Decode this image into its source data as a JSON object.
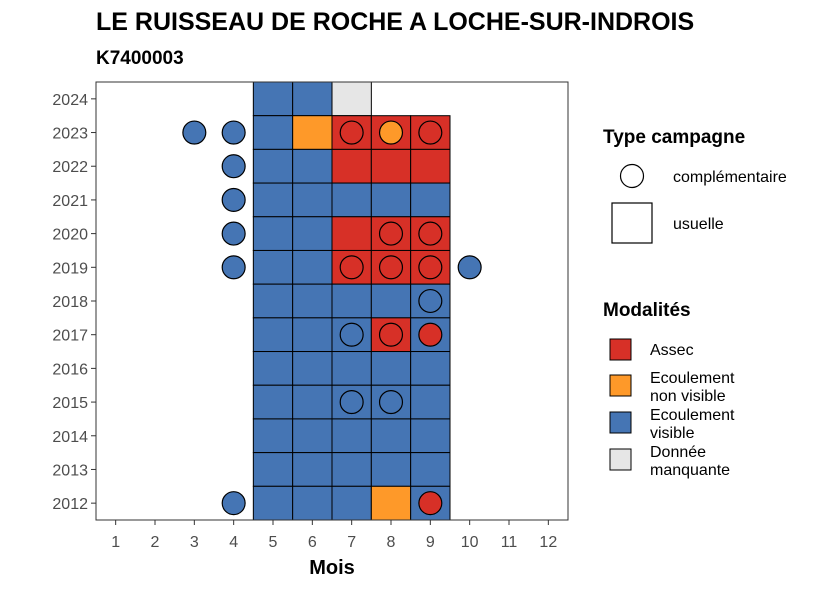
{
  "chart_data": {
    "type": "heatmap",
    "title": "LE RUISSEAU DE ROCHE A LOCHE-SUR-INDROIS",
    "subtitle": "K7400003",
    "xlabel": "Mois",
    "ylabel": "",
    "x_ticks": [
      1,
      2,
      3,
      4,
      5,
      6,
      7,
      8,
      9,
      10,
      11,
      12
    ],
    "y_ticks": [
      2012,
      2013,
      2014,
      2015,
      2016,
      2017,
      2018,
      2019,
      2020,
      2021,
      2022,
      2023,
      2024
    ],
    "xlim": [
      0.5,
      12.5
    ],
    "ylim": [
      2011.5,
      2024.5
    ],
    "grid": false,
    "colors": {
      "Assec": "#d73027",
      "Ecoulement non visible": "#fe9929",
      "Ecoulement visible": "#4575b4",
      "Donnée manquante": "#e6e6e6"
    },
    "legend": {
      "type_title": "Type campagne",
      "type_items": [
        {
          "shape": "circle",
          "label": "complémentaire"
        },
        {
          "shape": "square",
          "label": "usuelle"
        }
      ],
      "mod_title": "Modalités",
      "mod_items": [
        {
          "key": "Assec",
          "lines": [
            "Assec"
          ]
        },
        {
          "key": "Ecoulement non visible",
          "lines": [
            "Ecoulement",
            "non visible"
          ]
        },
        {
          "key": "Ecoulement visible",
          "lines": [
            "Ecoulement",
            "visible"
          ]
        },
        {
          "key": "Donnée manquante",
          "lines": [
            "Donnée",
            "manquante"
          ]
        }
      ],
      "position": "right"
    },
    "usuelle": [
      {
        "year": 2024,
        "months": [
          "Ecoulement visible",
          "Ecoulement visible",
          "Donnée manquante"
        ],
        "start": 5
      },
      {
        "year": 2023,
        "months": [
          "Ecoulement visible",
          "Ecoulement non visible",
          "Assec",
          "Assec",
          "Assec"
        ],
        "start": 5
      },
      {
        "year": 2022,
        "months": [
          "Ecoulement visible",
          "Ecoulement visible",
          "Assec",
          "Assec",
          "Assec"
        ],
        "start": 5
      },
      {
        "year": 2021,
        "months": [
          "Ecoulement visible",
          "Ecoulement visible",
          "Ecoulement visible",
          "Ecoulement visible",
          "Ecoulement visible"
        ],
        "start": 5
      },
      {
        "year": 2020,
        "months": [
          "Ecoulement visible",
          "Ecoulement visible",
          "Assec",
          "Assec",
          "Assec"
        ],
        "start": 5
      },
      {
        "year": 2019,
        "months": [
          "Ecoulement visible",
          "Ecoulement visible",
          "Assec",
          "Assec",
          "Assec"
        ],
        "start": 5
      },
      {
        "year": 2018,
        "months": [
          "Ecoulement visible",
          "Ecoulement visible",
          "Ecoulement visible",
          "Ecoulement visible",
          "Ecoulement visible"
        ],
        "start": 5
      },
      {
        "year": 2017,
        "months": [
          "Ecoulement visible",
          "Ecoulement visible",
          "Ecoulement visible",
          "Assec",
          "Ecoulement visible"
        ],
        "start": 5
      },
      {
        "year": 2016,
        "months": [
          "Ecoulement visible",
          "Ecoulement visible",
          "Ecoulement visible",
          "Ecoulement visible",
          "Ecoulement visible"
        ],
        "start": 5
      },
      {
        "year": 2015,
        "months": [
          "Ecoulement visible",
          "Ecoulement visible",
          "Ecoulement visible",
          "Ecoulement visible",
          "Ecoulement visible"
        ],
        "start": 5
      },
      {
        "year": 2014,
        "months": [
          "Ecoulement visible",
          "Ecoulement visible",
          "Ecoulement visible",
          "Ecoulement visible",
          "Ecoulement visible"
        ],
        "start": 5
      },
      {
        "year": 2013,
        "months": [
          "Ecoulement visible",
          "Ecoulement visible",
          "Ecoulement visible",
          "Ecoulement visible",
          "Ecoulement visible"
        ],
        "start": 5
      },
      {
        "year": 2012,
        "months": [
          "Ecoulement visible",
          "Ecoulement visible",
          "Ecoulement visible",
          "Ecoulement non visible",
          "Ecoulement visible"
        ],
        "start": 5
      }
    ],
    "complementaire": [
      {
        "year": 2023,
        "month": 3,
        "value": "Ecoulement visible"
      },
      {
        "year": 2023,
        "month": 4,
        "value": "Ecoulement visible"
      },
      {
        "year": 2023,
        "month": 7,
        "value": "Assec"
      },
      {
        "year": 2023,
        "month": 8,
        "value": "Ecoulement non visible"
      },
      {
        "year": 2023,
        "month": 9,
        "value": "Assec"
      },
      {
        "year": 2022,
        "month": 4,
        "value": "Ecoulement visible"
      },
      {
        "year": 2021,
        "month": 4,
        "value": "Ecoulement visible"
      },
      {
        "year": 2020,
        "month": 4,
        "value": "Ecoulement visible"
      },
      {
        "year": 2020,
        "month": 8,
        "value": "Assec"
      },
      {
        "year": 2020,
        "month": 9,
        "value": "Assec"
      },
      {
        "year": 2019,
        "month": 4,
        "value": "Ecoulement visible"
      },
      {
        "year": 2019,
        "month": 7,
        "value": "Assec"
      },
      {
        "year": 2019,
        "month": 8,
        "value": "Assec"
      },
      {
        "year": 2019,
        "month": 9,
        "value": "Assec"
      },
      {
        "year": 2019,
        "month": 10,
        "value": "Ecoulement visible"
      },
      {
        "year": 2018,
        "month": 9,
        "value": "Ecoulement visible"
      },
      {
        "year": 2017,
        "month": 7,
        "value": "Ecoulement visible"
      },
      {
        "year": 2017,
        "month": 8,
        "value": "Assec"
      },
      {
        "year": 2017,
        "month": 9,
        "value": "Assec"
      },
      {
        "year": 2015,
        "month": 7,
        "value": "Ecoulement visible"
      },
      {
        "year": 2015,
        "month": 8,
        "value": "Ecoulement visible"
      },
      {
        "year": 2012,
        "month": 4,
        "value": "Ecoulement visible"
      },
      {
        "year": 2012,
        "month": 9,
        "value": "Assec"
      }
    ]
  }
}
